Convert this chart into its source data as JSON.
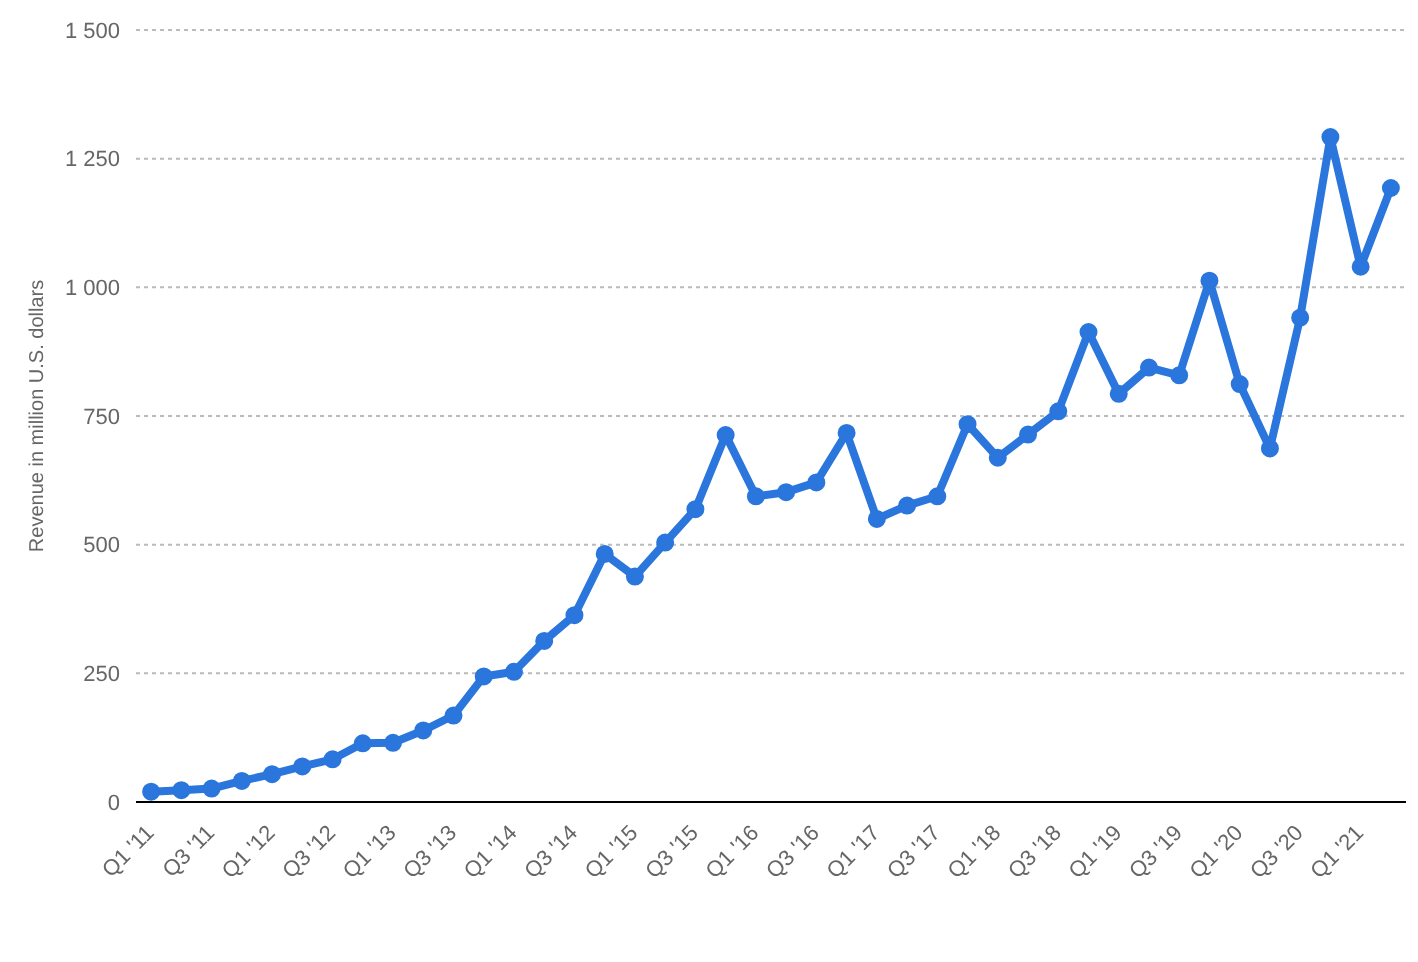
{
  "chart_data": {
    "type": "line",
    "ylabel": "Revenue in million U.S. dollars",
    "categories": [
      "Q1 '11",
      null,
      "Q3 '11",
      null,
      "Q1 '12",
      null,
      "Q3 '12",
      null,
      "Q1 '13",
      null,
      "Q3 '13",
      null,
      "Q1 '14",
      null,
      "Q3 '14",
      null,
      "Q1 '15",
      null,
      "Q3 '15",
      null,
      "Q1 '16",
      null,
      "Q3 '16",
      null,
      "Q1 '17",
      null,
      "Q3 '17",
      null,
      "Q1 '18",
      null,
      "Q3 '18",
      null,
      "Q1 '19",
      null,
      "Q3 '19",
      null,
      "Q1 '20",
      null,
      "Q3 '20",
      null,
      "Q1 '21",
      null
    ],
    "series": [
      {
        "color": "#2a76dd",
        "values": [
          20,
          23,
          26,
          41,
          54,
          69,
          83,
          114,
          115,
          139,
          168,
          244,
          253,
          313,
          363,
          482,
          438,
          504,
          569,
          713,
          594,
          602,
          621,
          717,
          550,
          576,
          594,
          734,
          669,
          714,
          759,
          913,
          793,
          844,
          829,
          1013,
          812,
          687,
          941,
          1292,
          1040,
          1193
        ]
      }
    ],
    "ylim": [
      0,
      1500
    ],
    "yticks": [
      0,
      250,
      500,
      750,
      {
        "value": 1000,
        "label": "1 000"
      },
      {
        "value": 1250,
        "label": "1 250"
      },
      {
        "value": 1500,
        "label": "1 500"
      }
    ],
    "grid": "y",
    "marker": "circle",
    "line_style": "solid",
    "legend": false
  }
}
